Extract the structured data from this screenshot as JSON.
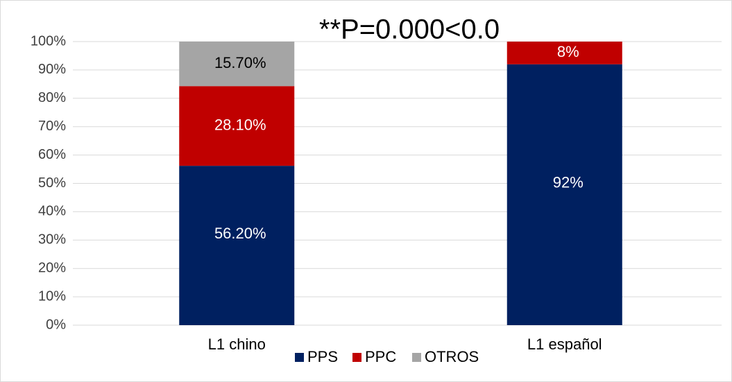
{
  "chart_data": {
    "type": "stacked-bar",
    "title": "**P=0.000<0.0",
    "categories": [
      "L1 chino",
      "L1 español"
    ],
    "series": [
      {
        "name": "PPS",
        "color": "#002060",
        "label_color": "#ffffff",
        "values": [
          56.2,
          92
        ],
        "value_labels": [
          "56.20%",
          "92%"
        ]
      },
      {
        "name": "PPC",
        "color": "#c00000",
        "label_color": "#ffffff",
        "values": [
          28.1,
          8
        ],
        "value_labels": [
          "28.10%",
          "8%"
        ]
      },
      {
        "name": "OTROS",
        "color": "#a5a5a5",
        "label_color": "#000000",
        "values": [
          15.7,
          null
        ],
        "value_labels": [
          "15.70%",
          null
        ]
      }
    ],
    "ylim": [
      0,
      100
    ],
    "yticks": [
      {
        "value": 0,
        "label": "0%"
      },
      {
        "value": 10,
        "label": "10%"
      },
      {
        "value": 20,
        "label": "20%"
      },
      {
        "value": 30,
        "label": "30%"
      },
      {
        "value": 40,
        "label": "40%"
      },
      {
        "value": 50,
        "label": "50%"
      },
      {
        "value": 60,
        "label": "60%"
      },
      {
        "value": 70,
        "label": "70%"
      },
      {
        "value": 80,
        "label": "80%"
      },
      {
        "value": 90,
        "label": "90%"
      },
      {
        "value": 100,
        "label": "100%"
      }
    ],
    "grid": true,
    "legend": "bottom"
  }
}
